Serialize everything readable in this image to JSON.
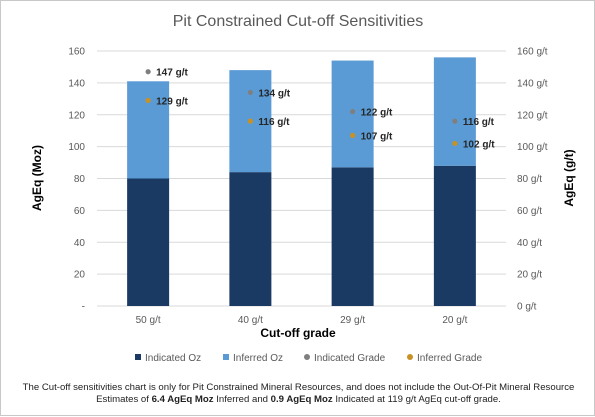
{
  "chart_data": {
    "type": "bar",
    "title": "Pit Constrained Cut-off Sensitivities",
    "xlabel": "Cut-off grade",
    "ylabel_left": "AgEq (Moz)",
    "ylabel_right": "AgEq (g/t)",
    "categories": [
      "50 g/t",
      "40 g/t",
      "29 g/t",
      "20 g/t"
    ],
    "left_axis": {
      "range": [
        0,
        160
      ],
      "tick_labels": [
        "-",
        "20",
        "40",
        "60",
        "80",
        "100",
        "120",
        "140",
        "160"
      ]
    },
    "right_axis": {
      "range": [
        0,
        160
      ],
      "tick_labels": [
        "0 g/t",
        "20 g/t",
        "40 g/t",
        "60 g/t",
        "80 g/t",
        "100 g/t",
        "120 g/t",
        "140 g/t",
        "160 g/t"
      ]
    },
    "grid": true,
    "stacked": true,
    "legend_position": "bottom",
    "series": [
      {
        "name": "Indicated Oz",
        "kind": "bar",
        "axis": "left",
        "color": "#1a3a63",
        "values": [
          80,
          84,
          87,
          88
        ]
      },
      {
        "name": "Inferred Oz",
        "kind": "bar",
        "axis": "left",
        "color": "#5b9bd5",
        "values": [
          61,
          64,
          67,
          68
        ]
      },
      {
        "name": "Indicated Grade",
        "kind": "point",
        "axis": "right",
        "color": "#7f7f7f",
        "values": [
          147,
          134,
          122,
          116
        ],
        "labels": [
          "147 g/t",
          "134 g/t",
          "122 g/t",
          "116 g/t"
        ]
      },
      {
        "name": "Inferred Grade",
        "kind": "point",
        "axis": "right",
        "color": "#c89123",
        "values": [
          129,
          116,
          107,
          102
        ],
        "labels": [
          "129 g/t",
          "116 g/t",
          "107 g/t",
          "102 g/t"
        ]
      }
    ]
  },
  "footnote": {
    "part1": "The Cut-off sensitivities chart is only for Pit Constrained Mineral Resources, and does not include the Out-Of-Pit Mineral Resource Estimates of ",
    "bold1": "6.4 AgEq Moz",
    "part2": " Inferred and ",
    "bold2": "0.9 AgEq Moz",
    "part3": " Indicated at 119 g/t AgEq cut-off grade."
  }
}
